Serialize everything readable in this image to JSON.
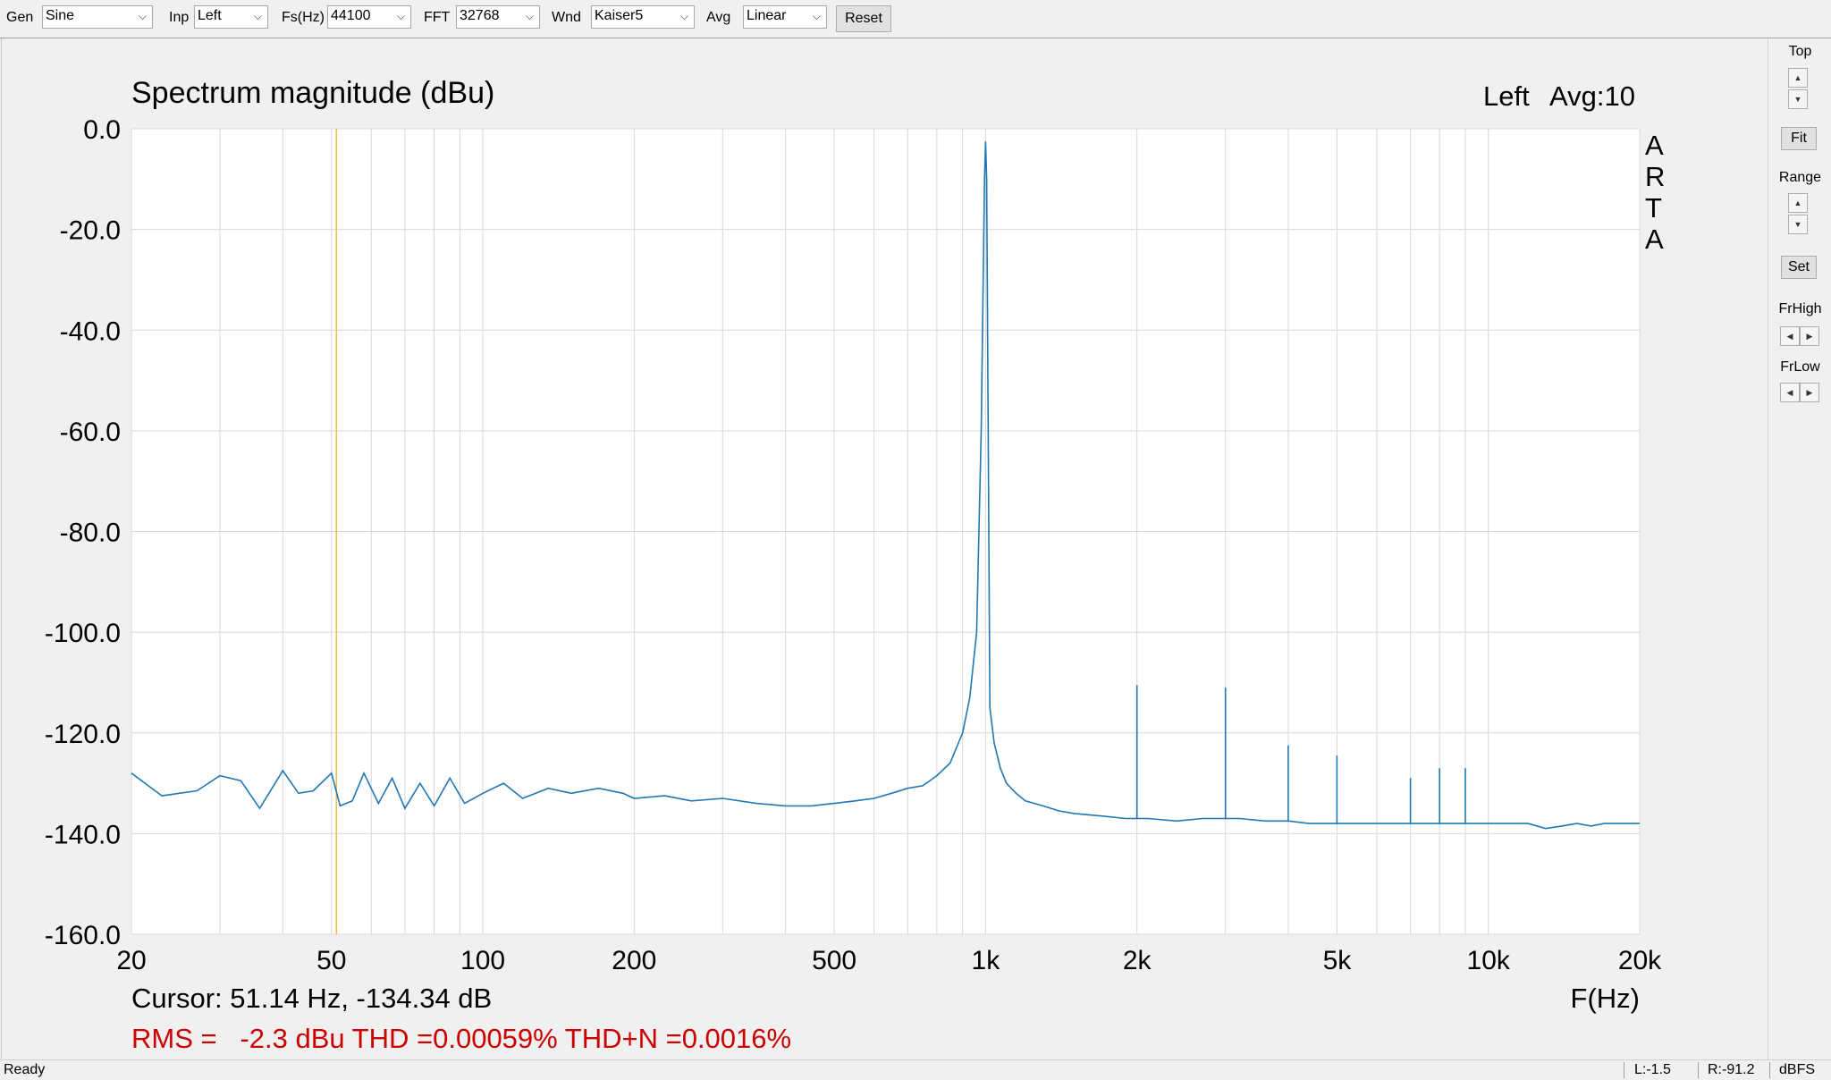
{
  "toolbar": {
    "gen_label": "Gen",
    "gen_value": "Sine",
    "inp_label": "Inp",
    "inp_value": "Left",
    "fs_label": "Fs(Hz)",
    "fs_value": "44100",
    "fft_label": "FFT",
    "fft_value": "32768",
    "wnd_label": "Wnd",
    "wnd_value": "Kaiser5",
    "avg_label": "Avg",
    "avg_value": "Linear",
    "reset_label": "Reset"
  },
  "right_panel": {
    "top_label": "Top",
    "fit_label": "Fit",
    "range_label": "Range",
    "set_label": "Set",
    "frhigh_label": "FrHigh",
    "frlow_label": "FrLow"
  },
  "plot": {
    "channel": "Left",
    "avg_text": "Avg:10",
    "logo_letters": [
      "A",
      "R",
      "T",
      "A"
    ],
    "cursor_text": "Cursor: 51.14 Hz, -134.34 dB",
    "measure_text": "RMS =   -2.3 dBu THD =0.00059% THD+N =0.0016%"
  },
  "status": {
    "ready": "Ready",
    "left_level": "L:-1.5",
    "right_level": "R:-91.2",
    "unit": "dBFS"
  },
  "colors": {
    "trace": "#1f77b4",
    "cursor": "#f0c040",
    "measure": "#cc0000",
    "grid": "#d8d8d8",
    "plot_bg": "#ffffff"
  },
  "chart_data": {
    "type": "line",
    "title": "Spectrum magnitude (dBu)",
    "xlabel": "F(Hz)",
    "ylabel": "",
    "x_scale": "log",
    "xlim": [
      20,
      20000
    ],
    "ylim": [
      -160,
      0
    ],
    "x_ticks": [
      20,
      50,
      100,
      200,
      500,
      1000,
      2000,
      5000,
      10000,
      20000
    ],
    "x_tick_labels": [
      "20",
      "50",
      "100",
      "200",
      "500",
      "1k",
      "2k",
      "5k",
      "10k",
      "20k"
    ],
    "y_ticks": [
      0,
      -20,
      -40,
      -60,
      -80,
      -100,
      -120,
      -140,
      -160
    ],
    "y_tick_labels": [
      "0.0",
      "-20.0",
      "-40.0",
      "-60.0",
      "-80.0",
      "-100.0",
      "-120.0",
      "-140.0",
      "-160.0"
    ],
    "grid": true,
    "cursor_x": 51.14,
    "series": [
      {
        "x": [
          20,
          23,
          27,
          30,
          33,
          36,
          40,
          43,
          46,
          50,
          52,
          55,
          58,
          62,
          66,
          70,
          75,
          80,
          86,
          92,
          100,
          110,
          120,
          135,
          150,
          170,
          190,
          200,
          230,
          260,
          300,
          350,
          400,
          450,
          500,
          550,
          600,
          650,
          700,
          750,
          800,
          850,
          900,
          930,
          960,
          980,
          995,
          1000,
          1005,
          1020,
          1040,
          1070,
          1100,
          1150,
          1200,
          1300,
          1400,
          1500,
          1700,
          1900,
          2000,
          2000,
          2000,
          2100,
          2400,
          2700,
          3000,
          3000,
          3000,
          3200,
          3600,
          4000,
          4000,
          4000,
          4400,
          4800,
          5000,
          5000,
          5000,
          5500,
          6000,
          6500,
          7000,
          7000,
          7000,
          7500,
          8000,
          8000,
          8000,
          8500,
          9000,
          9000,
          9000,
          9500,
          10000,
          11000,
          12000,
          13000,
          14000,
          15000,
          16000,
          17000,
          18000,
          19000,
          20000
        ],
        "y": [
          -128,
          -132.5,
          -131.5,
          -128.5,
          -129.5,
          -135,
          -127.5,
          -132,
          -131.5,
          -128,
          -134.5,
          -133.5,
          -128,
          -134,
          -129,
          -135,
          -130,
          -134.5,
          -129,
          -134,
          -132,
          -130,
          -133,
          -131,
          -132,
          -131,
          -132,
          -133,
          -132.5,
          -133.5,
          -133,
          -134,
          -134.5,
          -134.5,
          -134,
          -133.5,
          -133,
          -132,
          -131,
          -130.5,
          -128.5,
          -126,
          -120,
          -113,
          -100,
          -60,
          -10,
          -2.5,
          -10,
          -115,
          -122,
          -127,
          -130,
          -132,
          -133.5,
          -134.5,
          -135.5,
          -136,
          -136.5,
          -137,
          -137,
          -110.5,
          -137,
          -137,
          -137.5,
          -137,
          -137,
          -111,
          -137,
          -137,
          -137.5,
          -137.5,
          -122.5,
          -137.5,
          -138,
          -138,
          -138,
          -124.5,
          -138,
          -138,
          -138,
          -138,
          -138,
          -129,
          -138,
          -138,
          -138,
          -127,
          -138,
          -138,
          -138,
          -127,
          -138,
          -138,
          -138,
          -138,
          -138,
          -139,
          -138.5,
          -138,
          -138.5,
          -138,
          -138,
          -138,
          -138
        ]
      }
    ]
  }
}
